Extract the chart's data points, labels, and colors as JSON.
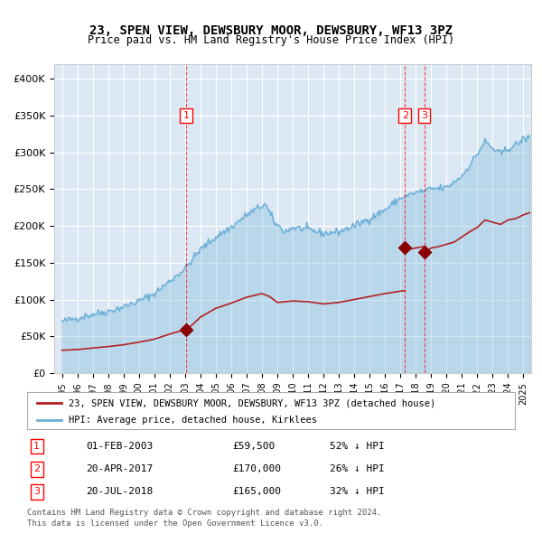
{
  "title": "23, SPEN VIEW, DEWSBURY MOOR, DEWSBURY, WF13 3PZ",
  "subtitle": "Price paid vs. HM Land Registry's House Price Index (HPI)",
  "bg_color": "#dce9f5",
  "plot_bg_color": "#dce9f5",
  "hpi_color": "#6baed6",
  "price_color": "#b22222",
  "marker_color": "#8b0000",
  "grid_color": "#ffffff",
  "legend_border_color": "#999999",
  "transactions": [
    {
      "num": 1,
      "date": "01-FEB-2003",
      "price": 59500,
      "date_x": 2003.085,
      "pct": "52% ↓ HPI"
    },
    {
      "num": 2,
      "date": "20-APR-2017",
      "price": 170000,
      "date_x": 2017.3,
      "pct": "26% ↓ HPI"
    },
    {
      "num": 3,
      "date": "20-JUL-2018",
      "price": 165000,
      "date_x": 2018.55,
      "pct": "32% ↓ HPI"
    }
  ],
  "footer1": "Contains HM Land Registry data © Crown copyright and database right 2024.",
  "footer2": "This data is licensed under the Open Government Licence v3.0.",
  "ylabel_ticks": [
    0,
    50000,
    100000,
    150000,
    200000,
    250000,
    300000,
    350000,
    400000
  ],
  "ylabel_labels": [
    "£0",
    "£50K",
    "£100K",
    "£150K",
    "£200K",
    "£250K",
    "£300K",
    "£350K",
    "£400K"
  ],
  "xlim": [
    1994.5,
    2025.5
  ],
  "ylim": [
    0,
    420000
  ]
}
